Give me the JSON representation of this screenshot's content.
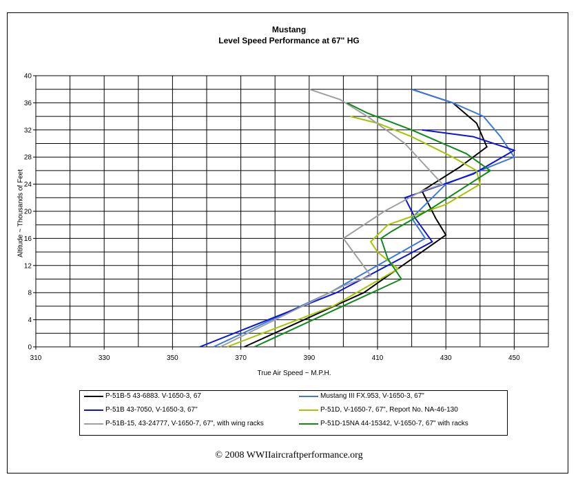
{
  "chart_data": {
    "type": "line",
    "title": "Mustang",
    "subtitle": "Level Speed Performance at 67\" HG",
    "xlabel": "True Air Speed ~ M.P.H.",
    "ylabel": "Altitude ~ Thousands of Feet",
    "xlim": [
      310,
      460
    ],
    "ylim": [
      0,
      40
    ],
    "x_ticks": [
      310,
      330,
      350,
      370,
      390,
      410,
      430,
      450
    ],
    "x_minor_step": 10,
    "y_ticks": [
      0,
      4,
      8,
      12,
      16,
      20,
      24,
      28,
      32,
      36,
      40
    ],
    "y_minor_step": 2,
    "grid": true,
    "legend_position": "bottom",
    "series": [
      {
        "name": "P-51B-5 43-6883. V-1650-3, 67",
        "color": "#000000",
        "points": [
          [
            371,
            0
          ],
          [
            406,
            8
          ],
          [
            430,
            16.5
          ],
          [
            427,
            19
          ],
          [
            423,
            23
          ],
          [
            434,
            26.5
          ],
          [
            442,
            29.5
          ],
          [
            439,
            33
          ],
          [
            432,
            36
          ],
          [
            420,
            38
          ]
        ]
      },
      {
        "name": "Mustang III FX.953, V-1650-3, 67\"",
        "color": "#3b78e0",
        "points": [
          [
            362,
            0
          ],
          [
            396,
            8
          ],
          [
            424,
            16
          ],
          [
            420,
            19
          ],
          [
            430,
            24
          ],
          [
            440,
            26
          ],
          [
            450,
            28
          ],
          [
            446,
            31
          ],
          [
            441,
            34
          ],
          [
            432,
            36
          ],
          [
            420,
            38
          ]
        ]
      },
      {
        "name": "P-51B  43-7050, V-1650-3, 67\"",
        "color": "#0a12e0",
        "points": [
          [
            358,
            0
          ],
          [
            398,
            8
          ],
          [
            426,
            15.5
          ],
          [
            421,
            19
          ],
          [
            418,
            22
          ],
          [
            438,
            25.5
          ],
          [
            450,
            29
          ],
          [
            438,
            31
          ],
          [
            423,
            32
          ]
        ]
      },
      {
        "name": "P-51D, V-1650-7, 67\", Report No. NA-46-130",
        "color": "#a4c400",
        "points": [
          [
            366,
            0
          ],
          [
            397,
            6
          ],
          [
            416,
            11.5
          ],
          [
            410,
            14
          ],
          [
            408,
            15.5
          ],
          [
            413,
            18
          ],
          [
            430,
            21
          ],
          [
            440,
            24
          ],
          [
            439,
            26
          ],
          [
            432,
            28
          ],
          [
            420,
            31
          ],
          [
            410,
            33
          ],
          [
            402,
            34
          ]
        ]
      },
      {
        "name": "P-51B-15, 43-24777, V-1650-7, 67\", with wing racks",
        "color": "#a0a0a0",
        "points": [
          [
            364,
            0
          ],
          [
            400,
            9
          ],
          [
            408,
            10.5
          ],
          [
            400,
            16
          ],
          [
            412,
            20
          ],
          [
            423,
            23
          ],
          [
            429,
            24
          ],
          [
            418,
            30
          ],
          [
            407,
            34
          ],
          [
            399,
            36.5
          ],
          [
            390,
            38
          ]
        ]
      },
      {
        "name": "P-51D-15NA 44-15342,  V-1650-7, 67\" with racks",
        "color": "#0d8a18",
        "points": [
          [
            374,
            0
          ],
          [
            417,
            10
          ],
          [
            413,
            13
          ],
          [
            411,
            16
          ],
          [
            414,
            17
          ],
          [
            426,
            20.5
          ],
          [
            443,
            26
          ],
          [
            436,
            28.5
          ],
          [
            420,
            32
          ],
          [
            407,
            34.5
          ],
          [
            401,
            36
          ]
        ]
      }
    ]
  },
  "copyright": "© 2008 WWIIaircraftperformance.org"
}
